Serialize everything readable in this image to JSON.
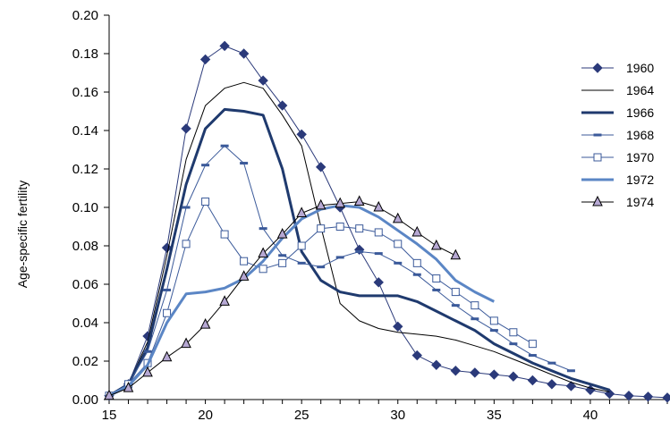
{
  "chart_data": {
    "type": "line",
    "ylabel": "Age-specific fertility",
    "xlabel": "",
    "xlim": [
      15,
      44
    ],
    "ylim": [
      0,
      0.2
    ],
    "xticks": [
      "15",
      "20",
      "25",
      "30",
      "35",
      "40"
    ],
    "yticks": [
      "0.00",
      "0.02",
      "0.04",
      "0.06",
      "0.08",
      "0.10",
      "0.12",
      "0.14",
      "0.16",
      "0.18",
      "0.20"
    ],
    "grid": false,
    "legend_position": "right",
    "series": [
      {
        "name": "1960",
        "color": "#2b3a7a",
        "marker": "diamond",
        "width": 1,
        "points": [
          [
            15,
            0.002
          ],
          [
            16,
            0.008
          ],
          [
            17,
            0.033
          ],
          [
            18,
            0.079
          ],
          [
            19,
            0.141
          ],
          [
            20,
            0.177
          ],
          [
            21,
            0.184
          ],
          [
            22,
            0.18
          ],
          [
            23,
            0.166
          ],
          [
            24,
            0.153
          ],
          [
            25,
            0.138
          ],
          [
            26,
            0.121
          ],
          [
            27,
            0.1
          ],
          [
            28,
            0.078
          ],
          [
            29,
            0.061
          ],
          [
            30,
            0.038
          ],
          [
            31,
            0.023
          ],
          [
            32,
            0.018
          ],
          [
            33,
            0.015
          ],
          [
            34,
            0.014
          ],
          [
            35,
            0.013
          ],
          [
            36,
            0.012
          ],
          [
            37,
            0.01
          ],
          [
            38,
            0.008
          ],
          [
            39,
            0.007
          ],
          [
            40,
            0.005
          ],
          [
            41,
            0.003
          ],
          [
            42,
            0.002
          ],
          [
            43,
            0.0015
          ],
          [
            44,
            0.001
          ]
        ]
      },
      {
        "name": "1964",
        "color": "#000000",
        "marker": "none",
        "width": 1,
        "points": [
          [
            15,
            0.002
          ],
          [
            16,
            0.008
          ],
          [
            17,
            0.03
          ],
          [
            18,
            0.075
          ],
          [
            19,
            0.125
          ],
          [
            20,
            0.153
          ],
          [
            21,
            0.162
          ],
          [
            22,
            0.165
          ],
          [
            23,
            0.162
          ],
          [
            24,
            0.148
          ],
          [
            25,
            0.132
          ],
          [
            26,
            0.09
          ],
          [
            27,
            0.05
          ],
          [
            28,
            0.041
          ],
          [
            29,
            0.037
          ],
          [
            30,
            0.035
          ],
          [
            31,
            0.034
          ],
          [
            32,
            0.033
          ],
          [
            33,
            0.031
          ],
          [
            34,
            0.028
          ],
          [
            35,
            0.025
          ],
          [
            36,
            0.021
          ],
          [
            37,
            0.017
          ],
          [
            38,
            0.013
          ],
          [
            39,
            0.009
          ],
          [
            40,
            0.006
          ],
          [
            41,
            0.004
          ]
        ]
      },
      {
        "name": "1966",
        "color": "#1f3a6e",
        "marker": "none",
        "width": 3,
        "points": [
          [
            15,
            0.002
          ],
          [
            16,
            0.008
          ],
          [
            17,
            0.027
          ],
          [
            18,
            0.068
          ],
          [
            19,
            0.112
          ],
          [
            20,
            0.141
          ],
          [
            21,
            0.151
          ],
          [
            22,
            0.15
          ],
          [
            23,
            0.148
          ],
          [
            24,
            0.12
          ],
          [
            25,
            0.077
          ],
          [
            26,
            0.062
          ],
          [
            27,
            0.056
          ],
          [
            28,
            0.054
          ],
          [
            29,
            0.054
          ],
          [
            30,
            0.054
          ],
          [
            31,
            0.051
          ],
          [
            32,
            0.046
          ],
          [
            33,
            0.041
          ],
          [
            34,
            0.036
          ],
          [
            35,
            0.029
          ],
          [
            36,
            0.024
          ],
          [
            37,
            0.019
          ],
          [
            38,
            0.015
          ],
          [
            39,
            0.011
          ],
          [
            40,
            0.008
          ],
          [
            41,
            0.005
          ]
        ]
      },
      {
        "name": "1968",
        "color": "#3b5a9a",
        "marker": "dash",
        "width": 1,
        "points": [
          [
            15,
            0.002
          ],
          [
            16,
            0.008
          ],
          [
            17,
            0.025
          ],
          [
            18,
            0.057
          ],
          [
            19,
            0.1
          ],
          [
            20,
            0.122
          ],
          [
            21,
            0.132
          ],
          [
            22,
            0.123
          ],
          [
            23,
            0.089
          ],
          [
            24,
            0.075
          ],
          [
            25,
            0.071
          ],
          [
            26,
            0.069
          ],
          [
            27,
            0.074
          ],
          [
            28,
            0.077
          ],
          [
            29,
            0.076
          ],
          [
            30,
            0.071
          ],
          [
            31,
            0.065
          ],
          [
            32,
            0.057
          ],
          [
            33,
            0.049
          ],
          [
            34,
            0.042
          ],
          [
            35,
            0.036
          ],
          [
            36,
            0.029
          ],
          [
            37,
            0.023
          ],
          [
            38,
            0.019
          ],
          [
            39,
            0.015
          ]
        ]
      },
      {
        "name": "1970",
        "color": "#3b5a9a",
        "marker": "square",
        "width": 1,
        "points": [
          [
            15,
            0.002
          ],
          [
            16,
            0.008
          ],
          [
            17,
            0.019
          ],
          [
            18,
            0.045
          ],
          [
            19,
            0.081
          ],
          [
            20,
            0.103
          ],
          [
            21,
            0.086
          ],
          [
            22,
            0.072
          ],
          [
            23,
            0.068
          ],
          [
            24,
            0.071
          ],
          [
            25,
            0.08
          ],
          [
            26,
            0.089
          ],
          [
            27,
            0.09
          ],
          [
            28,
            0.089
          ],
          [
            29,
            0.087
          ],
          [
            30,
            0.081
          ],
          [
            31,
            0.071
          ],
          [
            32,
            0.063
          ],
          [
            33,
            0.056
          ],
          [
            34,
            0.049
          ],
          [
            35,
            0.041
          ],
          [
            36,
            0.035
          ],
          [
            37,
            0.029
          ]
        ]
      },
      {
        "name": "1972",
        "color": "#5b86c5",
        "marker": "none",
        "width": 3,
        "points": [
          [
            15,
            0.002
          ],
          [
            16,
            0.007
          ],
          [
            17,
            0.018
          ],
          [
            18,
            0.04
          ],
          [
            19,
            0.055
          ],
          [
            20,
            0.056
          ],
          [
            21,
            0.058
          ],
          [
            22,
            0.063
          ],
          [
            23,
            0.072
          ],
          [
            24,
            0.084
          ],
          [
            25,
            0.094
          ],
          [
            26,
            0.099
          ],
          [
            27,
            0.101
          ],
          [
            28,
            0.1
          ],
          [
            29,
            0.095
          ],
          [
            30,
            0.088
          ],
          [
            31,
            0.081
          ],
          [
            32,
            0.073
          ],
          [
            33,
            0.062
          ],
          [
            34,
            0.056
          ],
          [
            35,
            0.051
          ]
        ]
      },
      {
        "name": "1974",
        "color": "#000000",
        "marker": "triangle",
        "marker_fill": "#b6a8d3",
        "width": 1,
        "points": [
          [
            15,
            0.002
          ],
          [
            16,
            0.006
          ],
          [
            17,
            0.014
          ],
          [
            18,
            0.022
          ],
          [
            19,
            0.029
          ],
          [
            20,
            0.039
          ],
          [
            21,
            0.051
          ],
          [
            22,
            0.064
          ],
          [
            23,
            0.076
          ],
          [
            24,
            0.086
          ],
          [
            25,
            0.097
          ],
          [
            26,
            0.101
          ],
          [
            27,
            0.102
          ],
          [
            28,
            0.103
          ],
          [
            29,
            0.1
          ],
          [
            30,
            0.094
          ],
          [
            31,
            0.087
          ],
          [
            32,
            0.08
          ],
          [
            33,
            0.075
          ]
        ]
      }
    ]
  }
}
